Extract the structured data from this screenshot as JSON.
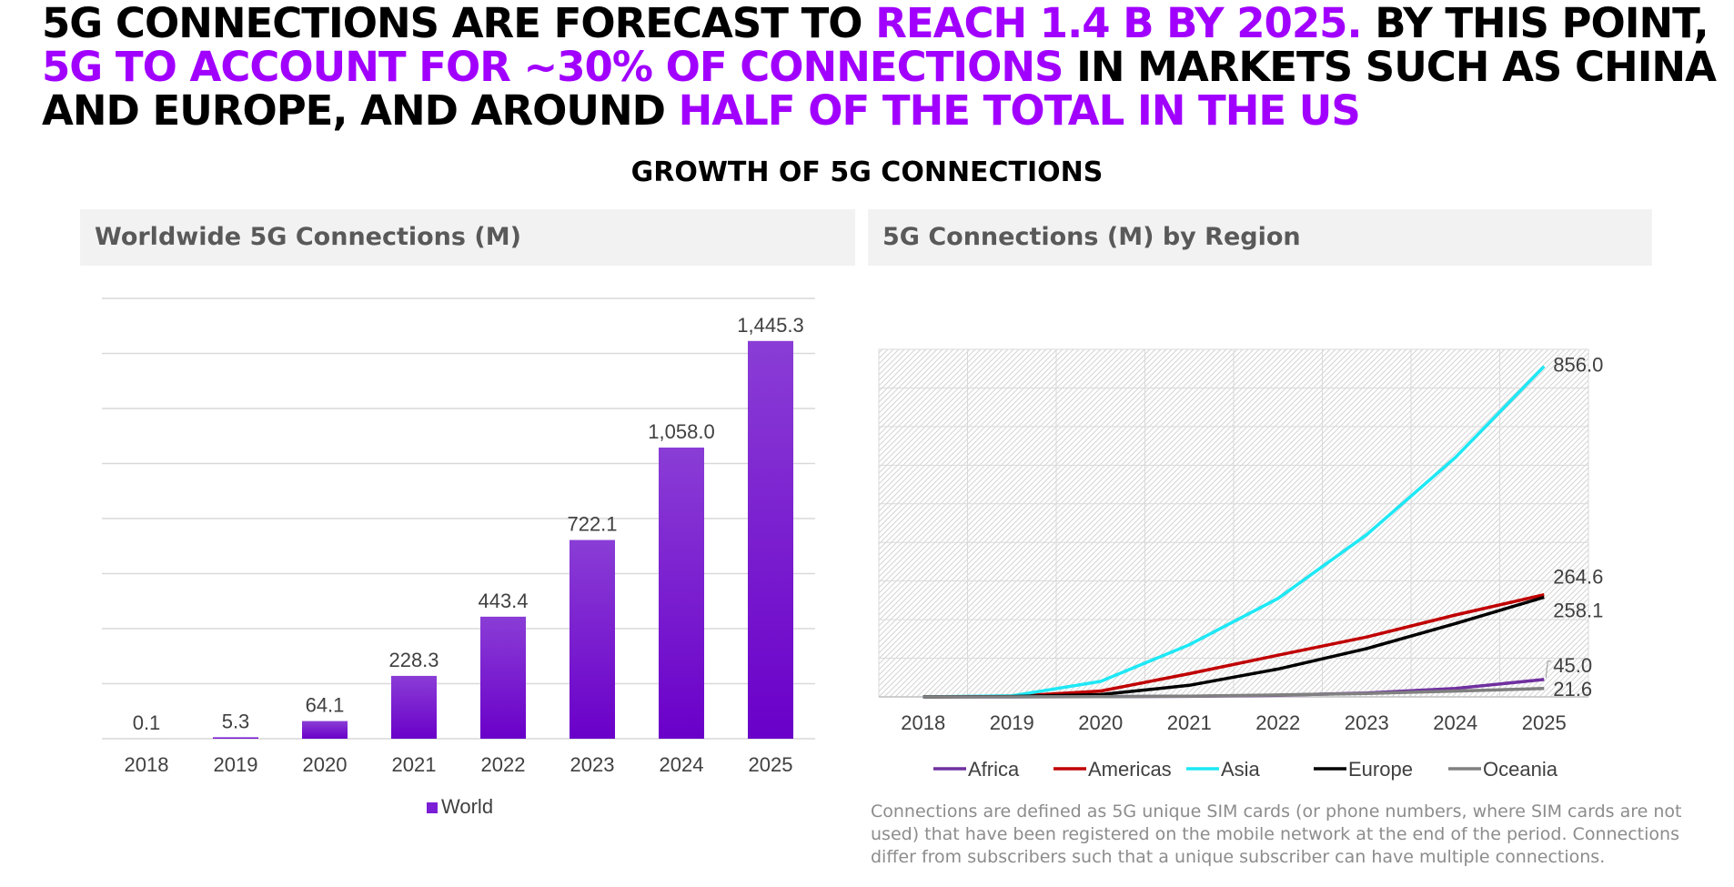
{
  "headline": {
    "p1": "5G CONNECTIONS ARE FORECAST TO ",
    "h1": "REACH 1.4 B BY 2025.",
    "p2": " BY THIS POINT, ",
    "h2": "5G TO ACCOUNT FOR ~30% OF CONNECTIONS",
    "p3": " IN MARKETS SUCH AS CHINA AND EUROPE, AND AROUND ",
    "h3": "HALF OF THE TOTAL IN THE US"
  },
  "section_title": "GROWTH OF 5G CONNECTIONS",
  "panels": {
    "left_title": "Worldwide 5G Connections (M)",
    "right_title": "5G Connections (M) by Region"
  },
  "footnote": "Connections are defined as 5G unique SIM cards (or phone numbers, where SIM cards are not used) that have been registered on the mobile network at the end of the period. Connections differ from subscribers such that a unique subscriber can have multiple connections.",
  "colors": {
    "accent": "#a100ff",
    "bar_top": "#8a3dd6",
    "bar_bottom": "#6a00c9"
  },
  "chart_data": [
    {
      "type": "bar",
      "categories": [
        "2018",
        "2019",
        "2020",
        "2021",
        "2022",
        "2023",
        "2024",
        "2025"
      ],
      "series": [
        {
          "name": "World",
          "values": [
            0.1,
            5.3,
            64.1,
            228.3,
            443.4,
            722.1,
            1058.0,
            1445.3
          ],
          "labels": [
            "0.1",
            "5.3",
            "64.1",
            "228.3",
            "443.4",
            "722.1",
            "1,058.0",
            "1,445.3"
          ],
          "color": "#7a1fd6"
        }
      ],
      "ylim": [
        0,
        1600
      ],
      "grid": true,
      "legend": "bottom-center"
    },
    {
      "type": "line",
      "x": [
        "2018",
        "2019",
        "2020",
        "2021",
        "2022",
        "2023",
        "2024",
        "2025"
      ],
      "series": [
        {
          "name": "Africa",
          "color": "#7030a0",
          "values": [
            0,
            0.1,
            0.5,
            1.5,
            4,
            10,
            22,
            45.0
          ],
          "end_label": "45.0"
        },
        {
          "name": "Americas",
          "color": "#c00000",
          "values": [
            0,
            1.5,
            15,
            60,
            108,
            155,
            212,
            264.6
          ],
          "end_label": "264.6"
        },
        {
          "name": "Asia",
          "color": "#1ee8f5",
          "values": [
            0,
            2.5,
            40,
            135,
            255,
            420,
            620,
            856.0
          ],
          "end_label": "856.0"
        },
        {
          "name": "Europe",
          "color": "#000000",
          "values": [
            0,
            1,
            6,
            30,
            72,
            125,
            190,
            258.1
          ],
          "end_label": "258.1"
        },
        {
          "name": "Oceania",
          "color": "#808080",
          "values": [
            0,
            0.1,
            0.5,
            2,
            5,
            9,
            15,
            21.6
          ],
          "end_label": "21.6"
        }
      ],
      "ylim": [
        0,
        900
      ],
      "grid": true,
      "legend": "bottom-center"
    }
  ]
}
